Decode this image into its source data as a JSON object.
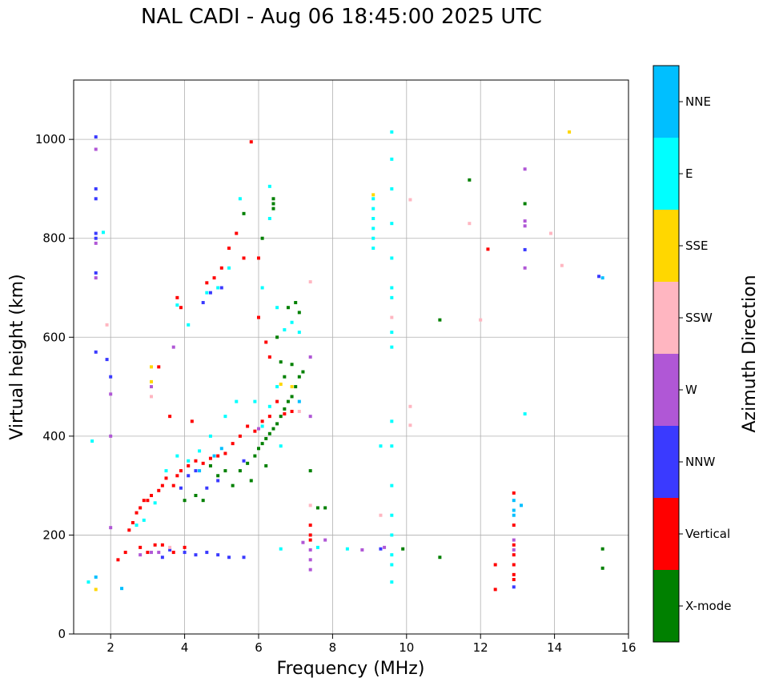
{
  "title": "NAL CADI - Aug 06 18:45:00 2025 UTC",
  "chart_data": {
    "type": "scatter",
    "title": "NAL CADI - Aug 06 18:45:00 2025 UTC",
    "xlabel": "Frequency (MHz)",
    "ylabel": "Virtual height (km)",
    "xlim": [
      1,
      16
    ],
    "ylim": [
      0,
      1120
    ],
    "xticks": [
      2,
      4,
      6,
      8,
      10,
      12,
      14,
      16
    ],
    "yticks": [
      0,
      200,
      400,
      600,
      800,
      1000
    ],
    "grid": true,
    "colorbar": {
      "label": "Azimuth Direction",
      "categories": [
        "X-mode",
        "Vertical",
        "NNW",
        "W",
        "SSW",
        "SSE",
        "E",
        "NNE"
      ],
      "colors": [
        "#008000",
        "#ff0000",
        "#3a3aff",
        "#b057d6",
        "#ffb6c1",
        "#ffd700",
        "#00ffff",
        "#00bfff"
      ]
    },
    "series": [
      {
        "name": "X-mode",
        "points": [
          [
            5.3,
            300
          ],
          [
            5.5,
            330
          ],
          [
            5.7,
            345
          ],
          [
            5.9,
            360
          ],
          [
            6.0,
            375
          ],
          [
            6.1,
            385
          ],
          [
            6.2,
            395
          ],
          [
            6.3,
            405
          ],
          [
            6.4,
            415
          ],
          [
            6.5,
            425
          ],
          [
            6.6,
            440
          ],
          [
            6.7,
            455
          ],
          [
            6.8,
            470
          ],
          [
            6.9,
            480
          ],
          [
            7.0,
            500
          ],
          [
            7.1,
            520
          ],
          [
            7.2,
            530
          ],
          [
            6.4,
            870
          ],
          [
            6.4,
            880
          ],
          [
            6.4,
            860
          ],
          [
            6.1,
            800
          ],
          [
            5.6,
            850
          ],
          [
            6.8,
            660
          ],
          [
            7.0,
            670
          ],
          [
            7.1,
            650
          ],
          [
            4.9,
            320
          ],
          [
            5.1,
            330
          ],
          [
            4.7,
            340
          ],
          [
            4.5,
            270
          ],
          [
            4.3,
            280
          ],
          [
            4.0,
            270
          ],
          [
            7.6,
            255
          ],
          [
            7.8,
            255
          ],
          [
            10.9,
            155
          ],
          [
            10.9,
            635
          ],
          [
            11.7,
            918
          ],
          [
            13.2,
            870
          ],
          [
            15.3,
            172
          ],
          [
            15.3,
            133
          ],
          [
            9.9,
            172
          ],
          [
            7.4,
            330
          ],
          [
            6.9,
            545
          ],
          [
            6.6,
            550
          ],
          [
            6.5,
            600
          ],
          [
            6.7,
            520
          ],
          [
            6.2,
            340
          ],
          [
            5.8,
            310
          ]
        ]
      },
      {
        "name": "Vertical",
        "points": [
          [
            2.2,
            150
          ],
          [
            2.4,
            165
          ],
          [
            2.5,
            210
          ],
          [
            2.6,
            225
          ],
          [
            2.7,
            245
          ],
          [
            2.8,
            255
          ],
          [
            2.9,
            270
          ],
          [
            3.0,
            270
          ],
          [
            3.1,
            280
          ],
          [
            3.3,
            290
          ],
          [
            3.4,
            300
          ],
          [
            3.5,
            315
          ],
          [
            3.7,
            300
          ],
          [
            3.8,
            320
          ],
          [
            3.9,
            330
          ],
          [
            4.1,
            340
          ],
          [
            4.3,
            350
          ],
          [
            4.5,
            345
          ],
          [
            4.7,
            355
          ],
          [
            4.9,
            360
          ],
          [
            5.1,
            365
          ],
          [
            5.3,
            385
          ],
          [
            5.5,
            400
          ],
          [
            5.7,
            420
          ],
          [
            5.9,
            410
          ],
          [
            6.1,
            430
          ],
          [
            6.3,
            440
          ],
          [
            6.5,
            470
          ],
          [
            6.7,
            445
          ],
          [
            6.9,
            450
          ],
          [
            2.8,
            175
          ],
          [
            3.0,
            165
          ],
          [
            3.2,
            180
          ],
          [
            3.4,
            180
          ],
          [
            3.7,
            165
          ],
          [
            4.0,
            175
          ],
          [
            4.6,
            710
          ],
          [
            4.8,
            720
          ],
          [
            5.0,
            740
          ],
          [
            5.2,
            780
          ],
          [
            5.4,
            810
          ],
          [
            5.6,
            760
          ],
          [
            5.8,
            995
          ],
          [
            6.0,
            640
          ],
          [
            6.2,
            590
          ],
          [
            6.3,
            560
          ],
          [
            7.4,
            220
          ],
          [
            7.4,
            200
          ],
          [
            7.4,
            190
          ],
          [
            12.2,
            778
          ],
          [
            12.4,
            140
          ],
          [
            12.4,
            90
          ],
          [
            12.9,
            110
          ],
          [
            12.9,
            120
          ],
          [
            12.9,
            140
          ],
          [
            12.9,
            160
          ],
          [
            12.9,
            180
          ],
          [
            12.9,
            220
          ],
          [
            12.9,
            285
          ],
          [
            3.3,
            540
          ],
          [
            3.8,
            680
          ],
          [
            3.9,
            660
          ],
          [
            6.0,
            760
          ],
          [
            4.2,
            430
          ],
          [
            3.6,
            440
          ]
        ]
      },
      {
        "name": "NNW",
        "points": [
          [
            1.6,
            1005
          ],
          [
            1.6,
            900
          ],
          [
            1.6,
            880
          ],
          [
            1.6,
            810
          ],
          [
            1.6,
            800
          ],
          [
            1.6,
            730
          ],
          [
            1.6,
            570
          ],
          [
            1.9,
            555
          ],
          [
            2.0,
            520
          ],
          [
            4.0,
            165
          ],
          [
            4.3,
            160
          ],
          [
            4.6,
            165
          ],
          [
            4.9,
            160
          ],
          [
            5.2,
            155
          ],
          [
            5.6,
            155
          ],
          [
            3.4,
            155
          ],
          [
            3.6,
            170
          ],
          [
            4.9,
            310
          ],
          [
            4.6,
            295
          ],
          [
            4.3,
            330
          ],
          [
            12.9,
            95
          ],
          [
            13.2,
            777
          ],
          [
            15.2,
            723
          ],
          [
            9.3,
            172
          ],
          [
            4.7,
            690
          ],
          [
            4.5,
            670
          ],
          [
            5.0,
            700
          ],
          [
            3.9,
            295
          ],
          [
            4.1,
            320
          ],
          [
            5.6,
            350
          ]
        ]
      },
      {
        "name": "W",
        "points": [
          [
            1.6,
            980
          ],
          [
            1.6,
            790
          ],
          [
            1.6,
            720
          ],
          [
            2.0,
            400
          ],
          [
            2.0,
            485
          ],
          [
            2.0,
            215
          ],
          [
            2.8,
            160
          ],
          [
            3.1,
            165
          ],
          [
            3.3,
            165
          ],
          [
            7.4,
            150
          ],
          [
            7.4,
            130
          ],
          [
            7.4,
            170
          ],
          [
            7.4,
            440
          ],
          [
            7.4,
            560
          ],
          [
            7.8,
            190
          ],
          [
            8.8,
            170
          ],
          [
            9.4,
            175
          ],
          [
            13.2,
            940
          ],
          [
            13.2,
            835
          ],
          [
            13.2,
            825
          ],
          [
            13.2,
            740
          ],
          [
            12.9,
            190
          ],
          [
            12.9,
            170
          ],
          [
            7.2,
            185
          ],
          [
            3.1,
            500
          ],
          [
            6.0,
            415
          ],
          [
            3.7,
            580
          ]
        ]
      },
      {
        "name": "SSW",
        "points": [
          [
            7.4,
            712
          ],
          [
            7.4,
            260
          ],
          [
            7.1,
            450
          ],
          [
            9.6,
            640
          ],
          [
            10.1,
            878
          ],
          [
            10.1,
            460
          ],
          [
            10.1,
            422
          ],
          [
            11.7,
            830
          ],
          [
            12.0,
            635
          ],
          [
            13.9,
            810
          ],
          [
            14.2,
            745
          ],
          [
            9.3,
            240
          ],
          [
            1.9,
            625
          ],
          [
            3.6,
            175
          ],
          [
            3.1,
            480
          ]
        ]
      },
      {
        "name": "SSE",
        "points": [
          [
            3.1,
            540
          ],
          [
            3.1,
            510
          ],
          [
            9.1,
            888
          ],
          [
            1.6,
            90
          ],
          [
            14.4,
            1015
          ],
          [
            6.6,
            505
          ],
          [
            6.9,
            500
          ]
        ]
      },
      {
        "name": "E",
        "points": [
          [
            9.1,
            880
          ],
          [
            9.1,
            860
          ],
          [
            9.1,
            840
          ],
          [
            9.1,
            820
          ],
          [
            9.1,
            800
          ],
          [
            9.1,
            780
          ],
          [
            9.6,
            1015
          ],
          [
            9.6,
            960
          ],
          [
            9.6,
            900
          ],
          [
            9.6,
            830
          ],
          [
            9.6,
            760
          ],
          [
            9.6,
            700
          ],
          [
            9.6,
            680
          ],
          [
            9.6,
            610
          ],
          [
            9.6,
            580
          ],
          [
            9.6,
            430
          ],
          [
            9.6,
            380
          ],
          [
            9.6,
            300
          ],
          [
            9.6,
            240
          ],
          [
            9.6,
            200
          ],
          [
            9.6,
            160
          ],
          [
            9.6,
            140
          ],
          [
            9.6,
            105
          ],
          [
            9.3,
            380
          ],
          [
            8.4,
            172
          ],
          [
            6.6,
            172
          ],
          [
            13.2,
            445
          ],
          [
            4.1,
            625
          ],
          [
            3.8,
            665
          ],
          [
            4.6,
            690
          ],
          [
            4.9,
            700
          ],
          [
            5.2,
            740
          ],
          [
            5.5,
            880
          ],
          [
            6.1,
            420
          ],
          [
            6.3,
            460
          ],
          [
            6.6,
            380
          ],
          [
            5.9,
            470
          ],
          [
            5.4,
            470
          ],
          [
            5.1,
            440
          ],
          [
            4.7,
            400
          ],
          [
            4.4,
            370
          ],
          [
            4.1,
            350
          ],
          [
            3.8,
            360
          ],
          [
            3.5,
            330
          ],
          [
            3.2,
            265
          ],
          [
            2.9,
            230
          ],
          [
            2.7,
            220
          ],
          [
            6.3,
            905
          ],
          [
            6.3,
            840
          ],
          [
            6.1,
            700
          ],
          [
            6.5,
            660
          ],
          [
            6.7,
            615
          ],
          [
            6.9,
            630
          ],
          [
            7.1,
            610
          ],
          [
            1.4,
            105
          ],
          [
            1.8,
            812
          ],
          [
            6.5,
            500
          ],
          [
            7.6,
            175
          ],
          [
            1.5,
            390
          ]
        ]
      },
      {
        "name": "NNE",
        "points": [
          [
            1.6,
            115
          ],
          [
            2.3,
            92
          ],
          [
            15.3,
            720
          ],
          [
            13.1,
            260
          ],
          [
            12.9,
            250
          ],
          [
            12.9,
            240
          ],
          [
            12.9,
            270
          ],
          [
            7.1,
            470
          ],
          [
            5.0,
            375
          ],
          [
            4.8,
            360
          ],
          [
            4.4,
            330
          ]
        ]
      }
    ]
  }
}
